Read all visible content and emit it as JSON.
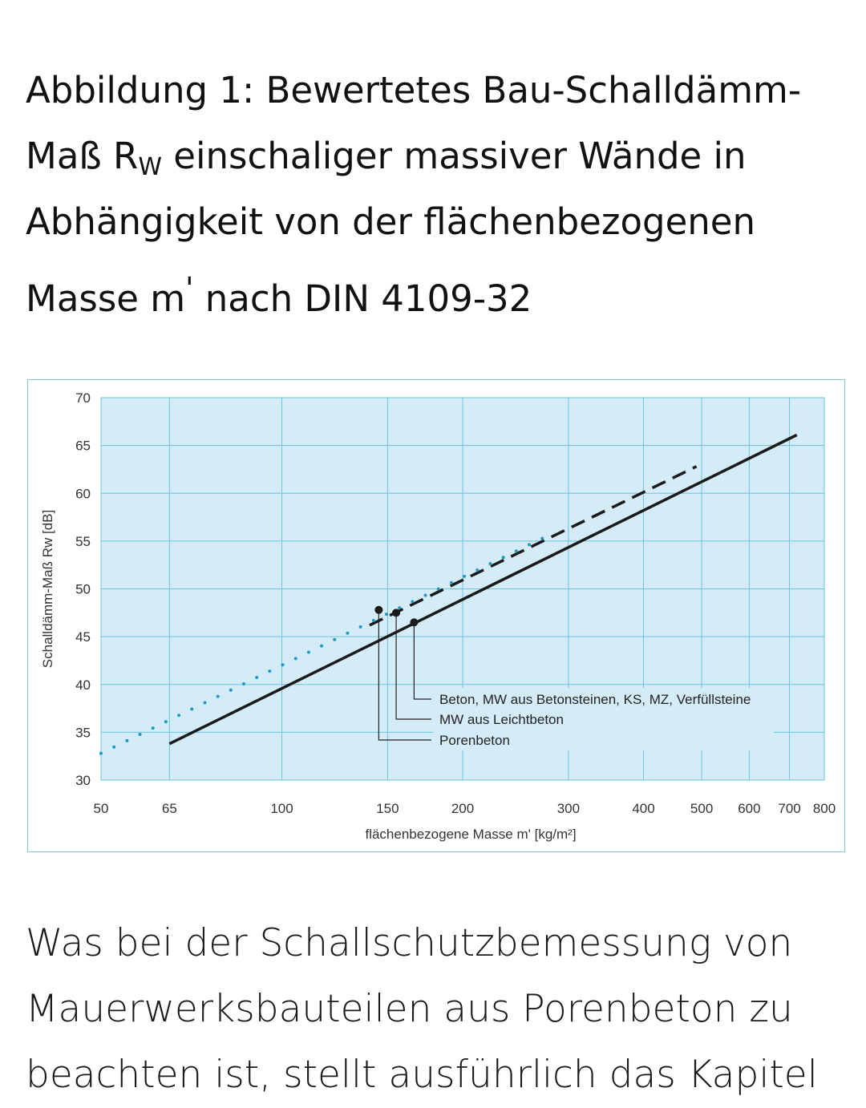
{
  "heading": {
    "part1": "Abbildung 1: Bewertetes Bau-Schalldämm-Maß R",
    "sub": "W",
    "part2": " einschaliger massiver Wände in Abhängigkeit von der flächenbezogenen Masse m",
    "sup": "'",
    "part3": " nach DIN 4109-32"
  },
  "chart_data": {
    "type": "line",
    "xlabel": "flächenbezogene Masse m' [kg/m²]",
    "ylabel": "Schalldämm-Maß Rw [dB]",
    "x_scale": "log",
    "xlim": [
      50,
      800
    ],
    "ylim": [
      30,
      70
    ],
    "x_ticks": [
      50,
      65,
      100,
      150,
      200,
      300,
      400,
      500,
      600,
      700,
      800
    ],
    "y_ticks": [
      30,
      35,
      40,
      45,
      50,
      55,
      60,
      65,
      70
    ],
    "grid": true,
    "colors": {
      "background": "#d4ebf8",
      "grid": "#6ec3dd",
      "line": "#1a1a1a",
      "dotted": "#1c9bc7"
    },
    "series": [
      {
        "name": "Beton, MW aus Betonsteinen, KS, MZ, Verfüllsteine",
        "style": "solid",
        "x": [
          65,
          720
        ],
        "y": [
          33.8,
          66.1
        ],
        "marker": [
          166,
          46.5
        ]
      },
      {
        "name": "MW aus Leichtbeton",
        "style": "dashed",
        "x": [
          140,
          490
        ],
        "y": [
          46.2,
          62.8
        ],
        "marker": [
          155,
          47.5
        ]
      },
      {
        "name": "Porenbeton",
        "style": "dotted",
        "x": [
          50,
          280
        ],
        "y": [
          32.8,
          55.7
        ],
        "marker": [
          145,
          47.8
        ]
      }
    ]
  },
  "body_text": "Was bei der Schallschutzbemessung von Mauerwerksbauteilen aus Porenbeton zu beachten ist, stellt ausführlich das Kapitel"
}
